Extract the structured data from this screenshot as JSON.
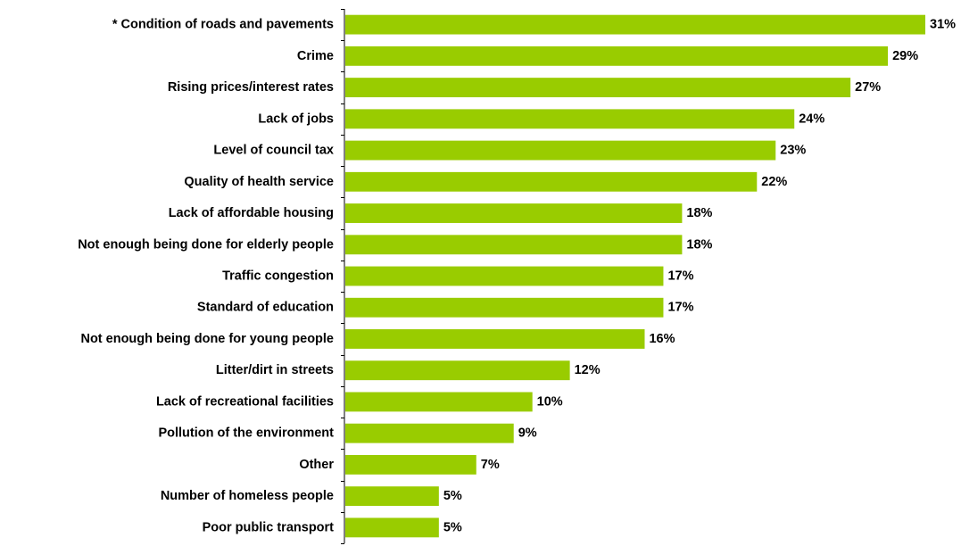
{
  "chart_data": {
    "type": "bar",
    "orientation": "horizontal",
    "categories": [
      "* Condition of roads and pavements",
      "Crime",
      "Rising prices/interest rates",
      "Lack of jobs",
      "Level of council tax",
      "Quality of health service",
      "Lack of affordable housing",
      "Not enough being done for elderly people",
      "Traffic congestion",
      "Standard of education",
      "Not enough being done for young people",
      "Litter/dirt in streets",
      "Lack of recreational facilities",
      "Pollution of the environment",
      "Other",
      "Number of homeless people",
      "Poor public transport"
    ],
    "values": [
      31,
      29,
      27,
      24,
      23,
      22,
      18,
      18,
      17,
      17,
      16,
      12,
      10,
      9,
      7,
      5,
      5
    ],
    "value_labels": [
      "31%",
      "29%",
      "27%",
      "24%",
      "23%",
      "22%",
      "18%",
      "18%",
      "17%",
      "17%",
      "16%",
      "12%",
      "10%",
      "9%",
      "7%",
      "5%",
      "5%"
    ],
    "unit": "%",
    "xlim": [
      0,
      31
    ],
    "title": "",
    "xlabel": "",
    "ylabel": "",
    "grid": false,
    "legend": "none",
    "bar_color": "#99cc00",
    "axis_color": "#000000",
    "text_color": "#000000"
  }
}
